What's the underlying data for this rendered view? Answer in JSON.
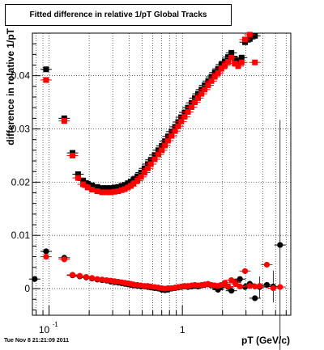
{
  "title": "Fitted difference in relative 1/pT  Global Tracks",
  "footer": "Tue Nov  8 21:21:09 2011",
  "chart_data": {
    "type": "scatter",
    "xlabel": "pT (GeV/c)",
    "ylabel": "difference in relative 1/pT",
    "x_scale": "log",
    "xlim": [
      0.075,
      6.5
    ],
    "ylim": [
      -0.005,
      0.048
    ],
    "x_tick_labels": [
      {
        "label": "10",
        "exponent": "-1",
        "value": 0.1
      },
      {
        "label": "1",
        "exponent": "",
        "value": 1
      }
    ],
    "y_tick_labels": [
      "0",
      "0.01",
      "0.02",
      "0.03",
      "0.04"
    ],
    "y_tick_values": [
      0,
      0.01,
      0.02,
      0.03,
      0.04
    ],
    "grid": true,
    "marker_shapes": [
      "square",
      "square",
      "circle",
      "circle"
    ],
    "series": [
      {
        "color": "#000000",
        "marker": "square",
        "x": [
          0.095,
          0.13,
          0.15,
          0.165,
          0.18,
          0.195,
          0.21,
          0.23,
          0.25,
          0.27,
          0.29,
          0.31,
          0.33,
          0.35,
          0.37,
          0.39,
          0.41,
          0.43,
          0.46,
          0.49,
          0.52,
          0.55,
          0.58,
          0.62,
          0.66,
          0.7,
          0.74,
          0.78,
          0.83,
          0.88,
          0.93,
          0.98,
          1.04,
          1.1,
          1.17,
          1.24,
          1.31,
          1.39,
          1.47,
          1.56,
          1.65,
          1.75,
          1.85,
          1.96,
          2.08,
          2.2,
          2.33,
          2.47,
          2.62,
          2.78,
          2.95,
          3.2,
          3.5
        ],
        "y": [
          0.0412,
          0.032,
          0.0255,
          0.0215,
          0.0203,
          0.0197,
          0.0194,
          0.0191,
          0.0189,
          0.0189,
          0.0189,
          0.019,
          0.0191,
          0.0193,
          0.0195,
          0.0198,
          0.0201,
          0.0205,
          0.0211,
          0.0218,
          0.0226,
          0.0234,
          0.0242,
          0.0251,
          0.026,
          0.0268,
          0.0277,
          0.0286,
          0.0295,
          0.0304,
          0.0313,
          0.0322,
          0.0331,
          0.034,
          0.0349,
          0.0358,
          0.0366,
          0.0374,
          0.0382,
          0.039,
          0.0398,
          0.0406,
          0.0413,
          0.0421,
          0.0427,
          0.0435,
          0.0443,
          0.0432,
          0.0427,
          0.0434,
          0.0463,
          0.0469,
          0.0475
        ]
      },
      {
        "color": "#ff0000",
        "marker": "square",
        "x": [
          0.095,
          0.13,
          0.15,
          0.165,
          0.18,
          0.195,
          0.21,
          0.23,
          0.25,
          0.27,
          0.29,
          0.31,
          0.33,
          0.35,
          0.37,
          0.39,
          0.41,
          0.43,
          0.46,
          0.49,
          0.52,
          0.55,
          0.58,
          0.62,
          0.66,
          0.7,
          0.74,
          0.78,
          0.83,
          0.88,
          0.93,
          0.98,
          1.04,
          1.1,
          1.17,
          1.24,
          1.31,
          1.39,
          1.47,
          1.56,
          1.65,
          1.75,
          1.85,
          1.96,
          2.08,
          2.2,
          2.33,
          2.47,
          2.62,
          2.78,
          2.95,
          3.2,
          3.5
        ],
        "y": [
          0.0392,
          0.0315,
          0.025,
          0.0208,
          0.0196,
          0.019,
          0.0186,
          0.0183,
          0.0181,
          0.0181,
          0.0181,
          0.0182,
          0.0183,
          0.0185,
          0.0187,
          0.019,
          0.0193,
          0.0197,
          0.0203,
          0.021,
          0.0218,
          0.0226,
          0.0234,
          0.0243,
          0.0252,
          0.026,
          0.0269,
          0.0278,
          0.0287,
          0.0296,
          0.0305,
          0.0314,
          0.0323,
          0.0332,
          0.0341,
          0.035,
          0.0358,
          0.0366,
          0.0374,
          0.0382,
          0.039,
          0.0398,
          0.0405,
          0.0413,
          0.0419,
          0.0426,
          0.0434,
          0.0423,
          0.0418,
          0.0425,
          0.0468,
          0.0477,
          0.0425
        ]
      },
      {
        "color": "#000000",
        "marker": "circle",
        "x": [
          0.078,
          0.095,
          0.13,
          0.15,
          0.17,
          0.19,
          0.21,
          0.23,
          0.25,
          0.27,
          0.29,
          0.31,
          0.33,
          0.35,
          0.37,
          0.39,
          0.41,
          0.43,
          0.46,
          0.49,
          0.52,
          0.55,
          0.58,
          0.62,
          0.66,
          0.7,
          0.74,
          0.78,
          0.83,
          0.88,
          0.93,
          0.98,
          1.04,
          1.1,
          1.17,
          1.24,
          1.31,
          1.39,
          1.47,
          1.56,
          1.65,
          1.75,
          1.85,
          1.96,
          2.08,
          2.2,
          2.33,
          2.5,
          2.7,
          2.95,
          3.2,
          3.5,
          3.8,
          4.3,
          4.8,
          5.4
        ],
        "y": [
          0.0018,
          0.007,
          0.0058,
          0.0025,
          0.0023,
          0.0021,
          0.0019,
          0.0017,
          0.0016,
          0.0015,
          0.0013,
          0.0012,
          0.0011,
          0.001,
          0.0009,
          0.0008,
          0.0007,
          0.0006,
          0.0005,
          0.0004,
          0.0004,
          0.0003,
          0.0002,
          0.0001,
          0.0,
          -0.0002,
          -0.0003,
          -0.0002,
          0.0,
          0.0001,
          0.0002,
          0.0003,
          0.0004,
          0.0003,
          0.0004,
          0.0005,
          0.0004,
          0.0006,
          0.0007,
          0.0008,
          0.0006,
          0.0004,
          -0.0002,
          0.0004,
          0.0008,
          0.0003,
          -0.0004,
          0.0012,
          0.0018,
          0.0003,
          0.0009,
          -0.0018,
          0.0003,
          0.0007,
          0.0004,
          0.0082
        ]
      },
      {
        "color": "#ff0000",
        "marker": "circle",
        "x": [
          0.095,
          0.13,
          0.15,
          0.17,
          0.19,
          0.21,
          0.23,
          0.25,
          0.27,
          0.29,
          0.31,
          0.33,
          0.35,
          0.37,
          0.39,
          0.41,
          0.43,
          0.46,
          0.49,
          0.52,
          0.55,
          0.58,
          0.62,
          0.66,
          0.7,
          0.74,
          0.78,
          0.83,
          0.88,
          0.93,
          0.98,
          1.04,
          1.1,
          1.17,
          1.24,
          1.31,
          1.39,
          1.47,
          1.56,
          1.65,
          1.75,
          1.85,
          1.96,
          2.08,
          2.2,
          2.33,
          2.5,
          2.7,
          2.95,
          3.2,
          3.5,
          3.8,
          4.3,
          4.8,
          5.4
        ],
        "y": [
          0.006,
          0.0055,
          0.0026,
          0.0024,
          0.0022,
          0.002,
          0.0018,
          0.0017,
          0.0016,
          0.0015,
          0.0014,
          0.0013,
          0.0012,
          0.0011,
          0.001,
          0.0009,
          0.0008,
          0.0007,
          0.0006,
          0.0005,
          0.0005,
          0.0004,
          0.0003,
          0.0002,
          0.0001,
          0.0,
          0.0001,
          0.0001,
          0.0002,
          0.0003,
          0.0004,
          0.0005,
          0.0005,
          0.0006,
          0.0007,
          0.0006,
          0.0007,
          0.0008,
          0.0009,
          0.0007,
          0.0006,
          0.0005,
          0.0007,
          0.0011,
          0.0004,
          0.0016,
          0.0009,
          0.0004,
          0.0033,
          0.0005,
          0.0004,
          0.0005,
          0.0045,
          0.0001,
          0.0003
        ]
      }
    ]
  }
}
